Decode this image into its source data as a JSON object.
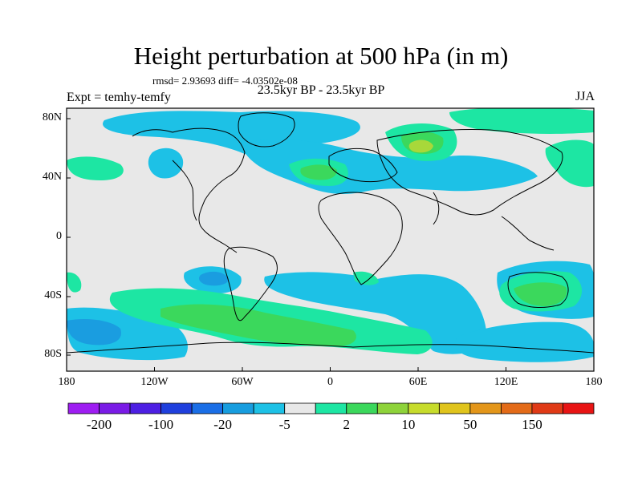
{
  "title": "Height perturbation at 500 hPa (in m)",
  "stats": "rmsd= 2.93693 diff= -4.03502e-08",
  "left_label": "Expt = temhy-temfy",
  "center_label": "23.5kyr BP - 23.5kyr BP",
  "right_label": "JJA",
  "map": {
    "lat_ticks": [
      "80N",
      "40N",
      "0",
      "40S",
      "80S"
    ],
    "lon_ticks": [
      "180",
      "120W",
      "60W",
      "0",
      "60E",
      "120E",
      "180"
    ],
    "background_color": "#e8e8e8",
    "coastline_color": "#000000"
  },
  "colorbar": {
    "colors": [
      "#9e1df2",
      "#7a1be6",
      "#4d1fe3",
      "#1f3fdd",
      "#1a6ee6",
      "#179ddf",
      "#1dc1e6",
      "#e8e8e8",
      "#1de6a3",
      "#3bd85c",
      "#8ed33a",
      "#c7dc2c",
      "#e0c41c",
      "#e3961a",
      "#e36b18",
      "#e03a16",
      "#e81414"
    ],
    "labels": [
      "-200",
      "-100",
      "-20",
      "-5",
      "2",
      "10",
      "50",
      "150"
    ]
  }
}
